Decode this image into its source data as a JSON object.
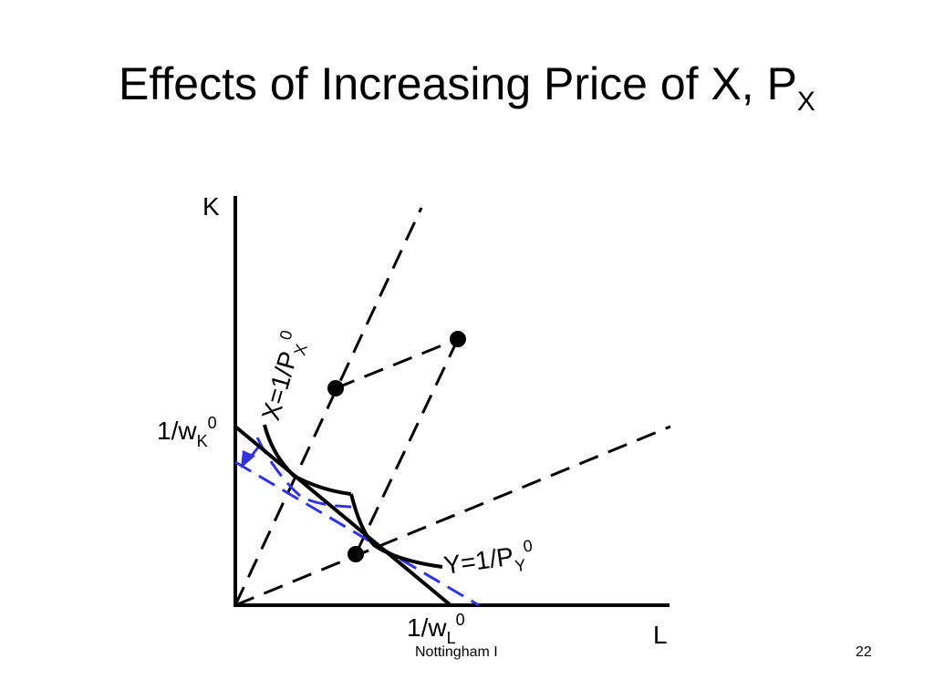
{
  "slide": {
    "title_main": "Effects of Increasing Price of X, P",
    "title_sub": "X",
    "footer": "Nottingham I",
    "page_number": "22"
  },
  "diagram": {
    "axis_y_label": "K",
    "axis_x_label": "L",
    "wk_label": {
      "base": "1/w",
      "sub": "K",
      "sup": "0"
    },
    "wl_label": {
      "base": "1/w",
      "sub": "L",
      "sup": "0"
    },
    "x_iso_label": {
      "base": "X=1/P",
      "sub": "X",
      "sup": "0"
    },
    "y_iso_label": {
      "base": "Y=1/P",
      "sub": "Y",
      "sup": "0"
    },
    "colors": {
      "ink": "#000000",
      "shift": "#3333dd"
    }
  }
}
